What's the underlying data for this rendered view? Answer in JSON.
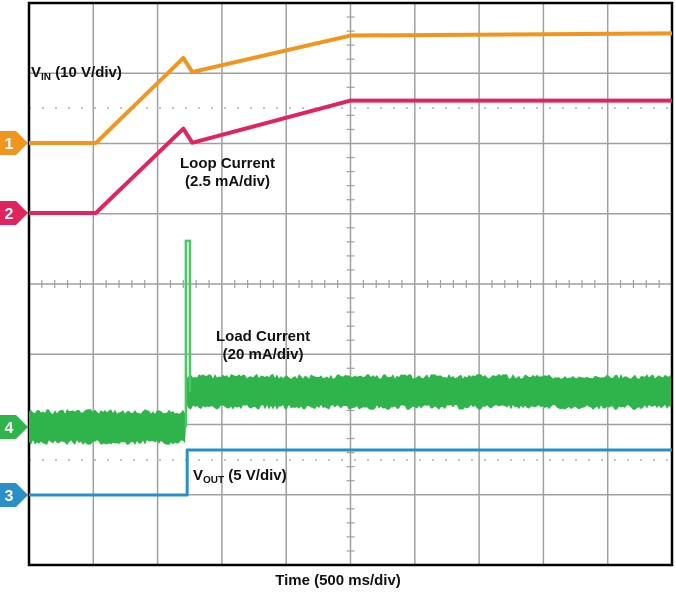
{
  "chart_data": {
    "type": "line",
    "xlabel": "Time (500 ms/div)",
    "x_unit": "ms",
    "xlim": [
      0,
      5000
    ],
    "grid": true,
    "series": [
      {
        "name": "VIN",
        "label_main": "V",
        "label_sub": "IN",
        "label_scale": "(10 V/div)",
        "marker": "1",
        "color": "#f0961e",
        "unit": "V",
        "per_div": 10,
        "points": [
          [
            0,
            0
          ],
          [
            520,
            0
          ],
          [
            1200,
            12.1
          ],
          [
            1270,
            10.1
          ],
          [
            2500,
            15.3
          ],
          [
            5000,
            15.6
          ]
        ]
      },
      {
        "name": "Loop Current",
        "label_scale": "(2.5 mA/div)",
        "marker": "2",
        "color": "#e0245e",
        "unit": "mA",
        "per_div": 2.5,
        "points": [
          [
            0,
            0
          ],
          [
            520,
            0
          ],
          [
            1200,
            3.0
          ],
          [
            1270,
            2.5
          ],
          [
            2500,
            4.0
          ],
          [
            5000,
            4.0
          ]
        ]
      },
      {
        "name": "Load Current",
        "label_scale": "(20 mA/div)",
        "marker": "4",
        "color": "#2fb34b",
        "unit": "mA",
        "per_div": 20,
        "points": [
          [
            0,
            0
          ],
          [
            1220,
            0
          ],
          [
            1230,
            53
          ],
          [
            1250,
            10
          ],
          [
            5000,
            10
          ]
        ]
      },
      {
        "name": "VOUT",
        "label_main": "V",
        "label_sub": "OUT",
        "label_scale": "(5 V/div)",
        "marker": "3",
        "color": "#2a8fc7",
        "unit": "V",
        "per_div": 5,
        "points": [
          [
            0,
            0
          ],
          [
            1230,
            0
          ],
          [
            1230,
            3.2
          ],
          [
            5000,
            3.2
          ]
        ]
      }
    ]
  }
}
